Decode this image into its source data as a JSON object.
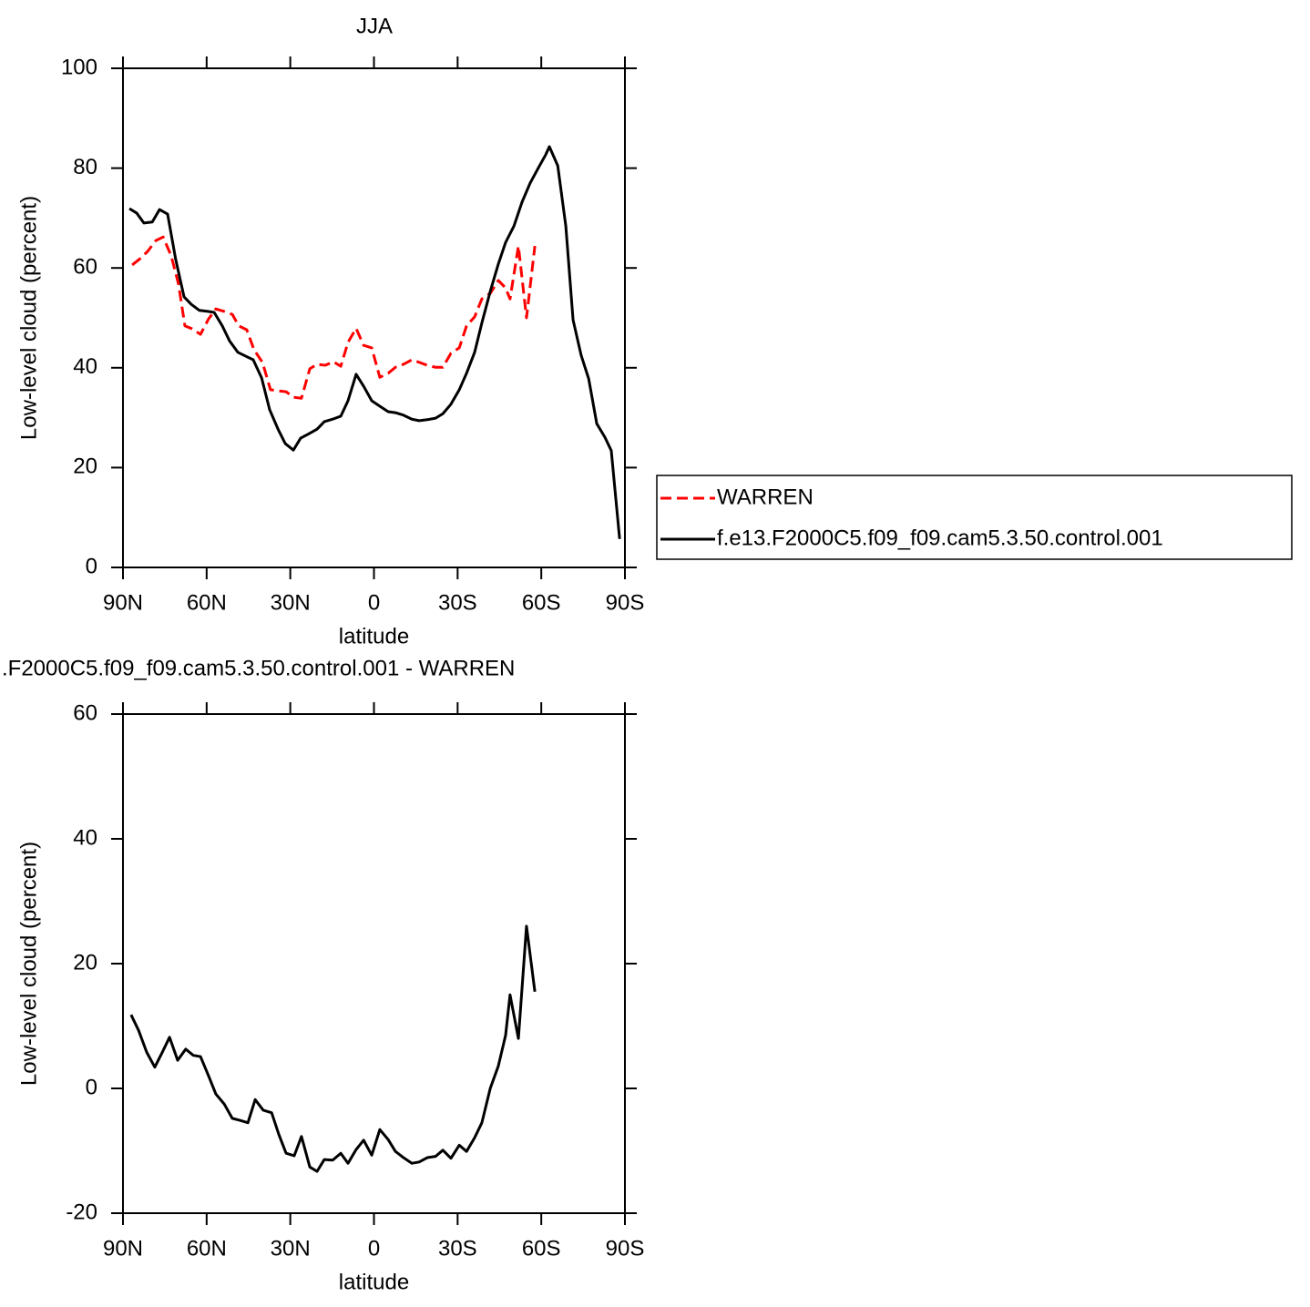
{
  "chart_data": [
    {
      "type": "line",
      "title": "JJA",
      "xlabel": "latitude",
      "ylabel": "Low-level cloud (percent)",
      "xlim": [
        90,
        -90
      ],
      "ylim": [
        0,
        100
      ],
      "xticks": [
        {
          "value": 90,
          "label": "90N"
        },
        {
          "value": 60,
          "label": "60N"
        },
        {
          "value": 30,
          "label": "30N"
        },
        0,
        {
          "value": -30,
          "label": "30S"
        },
        {
          "value": -60,
          "label": "60S"
        },
        {
          "value": -90,
          "label": "90S"
        }
      ],
      "yticks": [
        0,
        20,
        40,
        60,
        80,
        100
      ],
      "legend": "right",
      "series": [
        {
          "name": "WARREN",
          "color": "#ff0000",
          "style": "dashed",
          "x": [
            86.7,
            83.8,
            81.2,
            78.2,
            75.6,
            72.7,
            70.1,
            67.8,
            65.2,
            62.2,
            59.3,
            56.7,
            53.7,
            50.8,
            48.5,
            45.6,
            43.0,
            40.0,
            37.1,
            34.5,
            31.5,
            28.9,
            26.0,
            23.0,
            20.4,
            17.5,
            14.5,
            11.9,
            9.3,
            6.4,
            3.7,
            0.8,
            -2.1,
            -5.1,
            -7.7,
            -10.6,
            -13.6,
            -16.2,
            -19.1,
            -22.1,
            -24.7,
            -27.6,
            -30.6,
            -33.2,
            -36.1,
            -38.7,
            -41.7,
            -44.6,
            -47.2,
            -48.8,
            -51.8,
            -54.7,
            -57.7
          ],
          "values": [
            60.6,
            61.9,
            63.3,
            65.5,
            66.2,
            62.4,
            56.8,
            48.4,
            47.8,
            46.7,
            49.8,
            51.8,
            51.3,
            50.7,
            48.4,
            47.6,
            43.6,
            41.1,
            35.6,
            35.4,
            35.2,
            34.1,
            33.9,
            39.8,
            40.7,
            40.5,
            41.2,
            40.3,
            45.1,
            47.9,
            44.5,
            44.0,
            38.1,
            38.9,
            40.1,
            40.7,
            41.6,
            41.1,
            40.5,
            40.1,
            40.1,
            42.9,
            44.0,
            48.4,
            50.2,
            53.8,
            54.9,
            57.5,
            56.0,
            53.8,
            64.4,
            50.0,
            64.4
          ]
        },
        {
          "name": "f.e13.F2000C5.f09_f09.cam5.3.50.control.001",
          "color": "#000000",
          "style": "solid",
          "x": [
            87.7,
            85.1,
            82.5,
            79.5,
            76.9,
            74.0,
            71.1,
            68.1,
            65.5,
            62.6,
            59.6,
            57.3,
            54.4,
            51.8,
            48.8,
            45.9,
            43.3,
            40.3,
            37.4,
            34.4,
            31.8,
            28.9,
            26.3,
            23.3,
            20.4,
            17.8,
            14.8,
            11.9,
            9.3,
            6.4,
            3.7,
            0.8,
            -2.1,
            -5.1,
            -7.7,
            -10.6,
            -13.6,
            -16.2,
            -19.1,
            -22.1,
            -24.7,
            -27.6,
            -30.6,
            -33.2,
            -36.1,
            -38.7,
            -41.7,
            -44.6,
            -47.2,
            -50.2,
            -53.1,
            -56.0,
            -59.0,
            -61.6,
            -62.9,
            -65.9,
            -68.8,
            -71.4,
            -74.3,
            -77.0,
            -79.9,
            -82.8,
            -85.1,
            -88.1
          ],
          "values": [
            71.9,
            71.0,
            69.0,
            69.2,
            71.7,
            70.8,
            61.7,
            54.2,
            52.7,
            51.5,
            51.3,
            51.1,
            48.4,
            45.4,
            43.1,
            42.3,
            41.6,
            38.0,
            31.6,
            27.7,
            24.8,
            23.5,
            25.9,
            26.8,
            27.7,
            29.2,
            29.7,
            30.3,
            33.4,
            38.7,
            36.3,
            33.4,
            32.3,
            31.2,
            31.0,
            30.5,
            29.7,
            29.4,
            29.6,
            29.9,
            30.8,
            32.7,
            35.6,
            38.9,
            43.1,
            49.0,
            55.3,
            60.8,
            65.1,
            68.4,
            73.2,
            77.0,
            80.1,
            82.7,
            84.3,
            80.5,
            68.4,
            49.6,
            42.5,
            37.8,
            28.8,
            26.1,
            23.4,
            5.7
          ]
        }
      ]
    },
    {
      "type": "line",
      "title": ".F2000C5.f09_f09.cam5.3.50.control.001  -  WARREN",
      "xlabel": "latitude",
      "ylabel": "Low-level cloud (percent)",
      "xlim": [
        90,
        -90
      ],
      "ylim": [
        -20,
        60
      ],
      "xticks": [
        {
          "value": 90,
          "label": "90N"
        },
        {
          "value": 60,
          "label": "60N"
        },
        {
          "value": 30,
          "label": "30N"
        },
        0,
        {
          "value": -30,
          "label": "30S"
        },
        {
          "value": -60,
          "label": "60S"
        },
        {
          "value": -90,
          "label": "90S"
        }
      ],
      "yticks": [
        -20,
        0,
        20,
        40,
        60
      ],
      "series": [
        {
          "color": "#000000",
          "style": "solid",
          "x": [
            87.1,
            84.4,
            81.5,
            78.6,
            76.0,
            73.3,
            70.4,
            67.5,
            64.8,
            62.2,
            59.3,
            56.7,
            53.7,
            50.8,
            48.2,
            45.2,
            42.6,
            39.7,
            36.7,
            34.1,
            31.5,
            28.6,
            26.0,
            23.0,
            20.4,
            17.8,
            14.8,
            11.9,
            9.3,
            6.4,
            3.7,
            0.8,
            -2.1,
            -5.1,
            -7.7,
            -10.6,
            -13.6,
            -16.2,
            -19.1,
            -22.1,
            -24.7,
            -27.6,
            -30.6,
            -33.2,
            -36.1,
            -38.7,
            -41.7,
            -44.6,
            -47.2,
            -48.8,
            -51.8,
            -54.7,
            -57.7
          ],
          "values": [
            11.8,
            9.3,
            5.8,
            3.4,
            5.7,
            8.2,
            4.5,
            6.3,
            5.3,
            5.1,
            2.0,
            -0.9,
            -2.5,
            -4.8,
            -5.1,
            -5.5,
            -1.8,
            -3.5,
            -3.9,
            -7.4,
            -10.4,
            -10.8,
            -7.7,
            -12.6,
            -13.3,
            -11.4,
            -11.5,
            -10.4,
            -12.0,
            -9.8,
            -8.3,
            -10.7,
            -6.6,
            -8.2,
            -10.1,
            -11.1,
            -12.0,
            -11.8,
            -11.1,
            -10.9,
            -9.9,
            -11.2,
            -9.1,
            -10.1,
            -7.9,
            -5.5,
            0.0,
            3.6,
            8.5,
            15.0,
            8.0,
            26.0,
            15.5
          ]
        }
      ]
    }
  ]
}
